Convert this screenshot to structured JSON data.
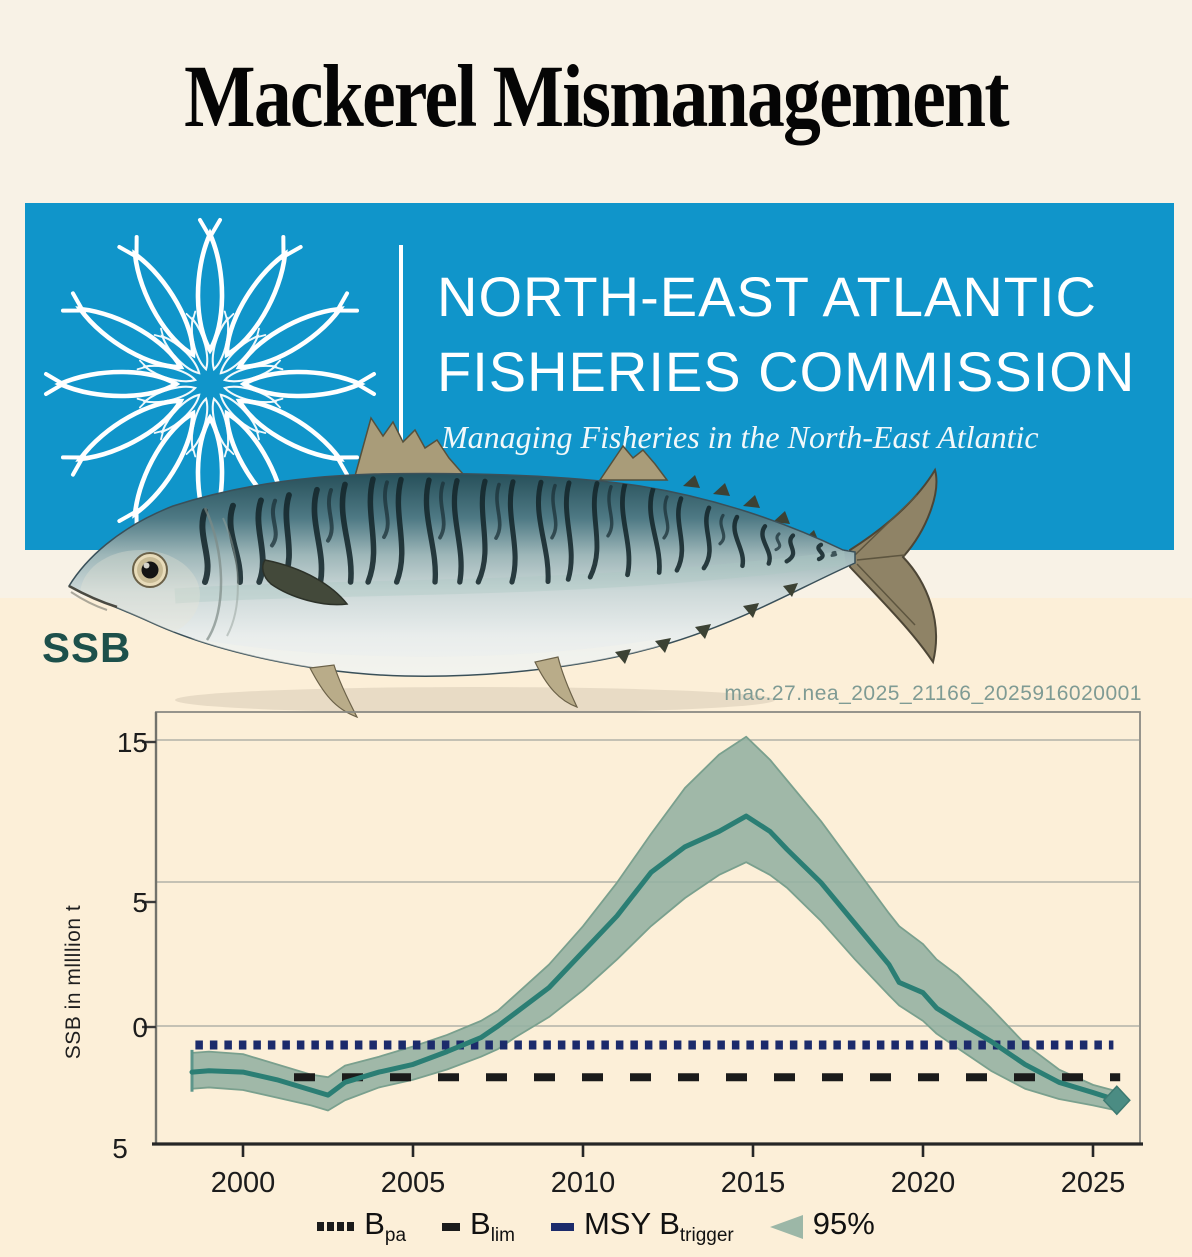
{
  "page": {
    "title": "Mackerel Mismanagement"
  },
  "colors": {
    "banner_blue": "#1095ca",
    "heading_teal": "#1d504b",
    "chart_id_text": "#7f9b94",
    "band_fill": "#93b0a0",
    "band_edge": "#7aa08e",
    "series_line": "#2b7e74",
    "diamond_marker": "#4b8c83",
    "navy_reference": "#1c2b6b",
    "black_reference": "#1b1b1b",
    "background_top": "#f8f2e6",
    "background_bottom": "#fcefd8"
  },
  "banner": {
    "org_line1": "NORTH-EAST ATLANTIC",
    "org_line2": "FISHERIES COMMISSION",
    "tagline": "Managing Fisheries in the North-East Atlantic",
    "logo": "neafc-fish-rosette-emblem"
  },
  "illustration": {
    "subject": "atlantic-mackerel"
  },
  "section": {
    "heading": "SSB",
    "chart_id": "mac.27.nea_2025_21166_2025916020001"
  },
  "chart_data": {
    "type": "line",
    "title": "SSB",
    "ylabel": "SSB in mllllion t",
    "xlabel": "",
    "grid": "horizontal",
    "legend_position": "bottom",
    "x_ticks": [
      2000,
      2005,
      2010,
      2015,
      2020,
      2025
    ],
    "x_tick_labels": [
      "2000",
      "2005",
      "2010",
      "2015",
      "2020",
      "2025"
    ],
    "y_tick_labels_shown": [
      "15",
      "5",
      "0",
      "5"
    ],
    "x_range": [
      1997.4,
      2026.4
    ],
    "y_range_estimate": [
      -4.6,
      12.3
    ],
    "x": [
      1998.5,
      1999,
      2000,
      2001,
      2002,
      2002.5,
      2003,
      2004,
      2005,
      2006,
      2007,
      2007.5,
      2008,
      2009,
      2010,
      2011,
      2012,
      2013,
      2014,
      2014.8,
      2015.5,
      2016,
      2017,
      2018,
      2019,
      2019.3,
      2020,
      2020.4,
      2021,
      2022,
      2023,
      2024,
      2025,
      2025.7
    ],
    "series": [
      {
        "name": "SSB estimate",
        "values": [
          -1.8,
          -1.75,
          -1.8,
          -2.1,
          -2.5,
          -2.7,
          -2.2,
          -1.8,
          -1.5,
          -1.0,
          -0.45,
          0,
          0.5,
          1.5,
          2.9,
          4.3,
          6.0,
          7.0,
          7.6,
          8.2,
          7.6,
          6.9,
          5.6,
          4.0,
          2.4,
          1.7,
          1.3,
          0.7,
          0.2,
          -0.6,
          -1.5,
          -2.2,
          -2.6,
          -2.9
        ]
      }
    ],
    "band_95": {
      "name": "95%",
      "upper": [
        -1.05,
        -1.0,
        -1.1,
        -1.5,
        -1.9,
        -2.0,
        -1.55,
        -1.2,
        -0.8,
        -0.35,
        0.2,
        0.6,
        1.2,
        2.4,
        3.9,
        5.6,
        7.5,
        9.3,
        10.6,
        11.3,
        10.4,
        9.6,
        8.0,
        6.2,
        4.4,
        3.9,
        3.2,
        2.6,
        2.0,
        0.7,
        -0.7,
        -1.7,
        -2.3,
        -2.55
      ],
      "lower": [
        -2.45,
        -2.4,
        -2.5,
        -2.8,
        -3.1,
        -3.3,
        -2.9,
        -2.4,
        -2.1,
        -1.7,
        -1.2,
        -0.9,
        -0.45,
        0.35,
        1.4,
        2.6,
        3.9,
        5.0,
        5.9,
        6.4,
        5.9,
        5.4,
        4.1,
        2.6,
        1.2,
        0.8,
        0.2,
        -0.3,
        -0.85,
        -1.75,
        -2.45,
        -2.85,
        -3.1,
        -3.3
      ]
    },
    "reference_lines": [
      {
        "label": "MSY Btrigger",
        "value": -0.74,
        "style": "dotted",
        "color": "#1c2b6b",
        "x_start": 1998.6,
        "x_end": 2025.6
      },
      {
        "label": "Blim",
        "value": -2.0,
        "style": "dashed",
        "color": "#1b1b1b",
        "x_start": 2001.5,
        "x_end": 2025.8
      }
    ],
    "end_marker": {
      "shape": "diamond",
      "x": 2025.7,
      "value": -2.9
    },
    "legend": [
      {
        "label": "B",
        "subscript": "pa",
        "style": "dotted",
        "color": "#1b1b1b"
      },
      {
        "label": "B",
        "subscript": "lim",
        "style": "dashed",
        "color": "#1b1b1b"
      },
      {
        "label": "MSY B",
        "subscript": "trigger",
        "style": "dash",
        "color": "#1c2b6b"
      },
      {
        "label": "95%",
        "subscript": "",
        "style": "band",
        "color": "#9cb7a7"
      }
    ]
  }
}
